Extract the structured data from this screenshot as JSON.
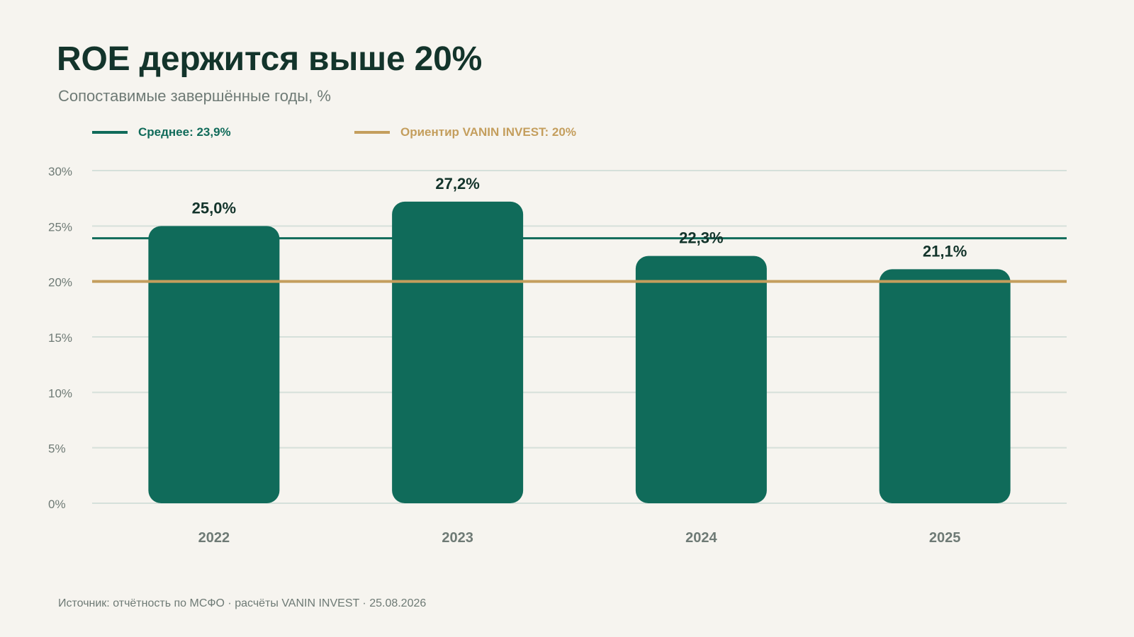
{
  "header": {
    "title": "ROE держится выше 20%",
    "subtitle": "Сопоставимые завершённые годы, %"
  },
  "legend": {
    "average_label": "Среднее: 23,9%",
    "target_label": "Ориентир VANIN INVEST: 20%"
  },
  "footer": {
    "source": "Источник: отчётность по МСФО · расчёты VANIN INVEST · 25.08.2026"
  },
  "colors": {
    "bar": "#106B5A",
    "average_line": "#106B5A",
    "target_line": "#C49E5D",
    "grid": "#D5E0DA",
    "text_dark": "#13342B",
    "text_muted": "#6E7A75"
  },
  "chart_data": {
    "type": "bar",
    "categories": [
      "2022",
      "2023",
      "2024",
      "2025"
    ],
    "values": [
      25.0,
      27.2,
      22.3,
      21.1
    ],
    "value_labels": [
      "25,0%",
      "27,2%",
      "22,3%",
      "21,1%"
    ],
    "ylim": [
      0,
      30
    ],
    "yticks": [
      0,
      5,
      10,
      15,
      20,
      25,
      30
    ],
    "ytick_labels": [
      "0%",
      "5%",
      "10%",
      "15%",
      "20%",
      "25%",
      "30%"
    ],
    "reference_lines": [
      {
        "name": "Среднее: 23,9%",
        "value": 23.9
      },
      {
        "name": "Ориентир VANIN INVEST: 20%",
        "value": 20
      }
    ],
    "grid": true,
    "legend_position": "top-left"
  }
}
